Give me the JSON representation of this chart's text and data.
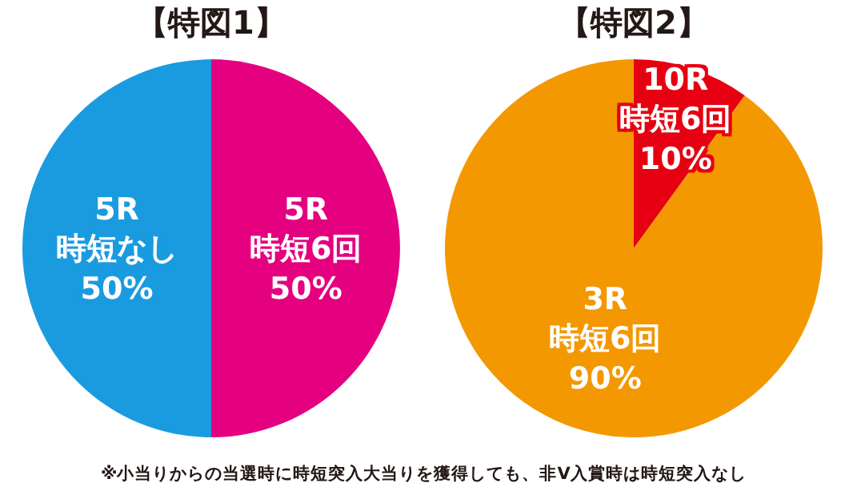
{
  "chart_data": [
    {
      "type": "pie",
      "title": "【特図1】",
      "categories": [
        "5R\n時短6回",
        "5R\n時短なし"
      ],
      "values": [
        50,
        50
      ],
      "value_labels": [
        "50%",
        "50%"
      ],
      "colors": [
        "#e4007f",
        "#1a9be0"
      ],
      "legend": false
    },
    {
      "type": "pie",
      "title": "【特図2】",
      "categories": [
        "10R\n時短6回",
        "3R\n時短6回"
      ],
      "values": [
        10,
        90
      ],
      "value_labels": [
        "10%",
        "90%"
      ],
      "colors": [
        "#e60012",
        "#f39800"
      ],
      "legend": false,
      "annotations": [
        "※小当りからの当選時に時短突入大当りを獲得しても、非V入賞時は時短突入なし"
      ]
    }
  ]
}
